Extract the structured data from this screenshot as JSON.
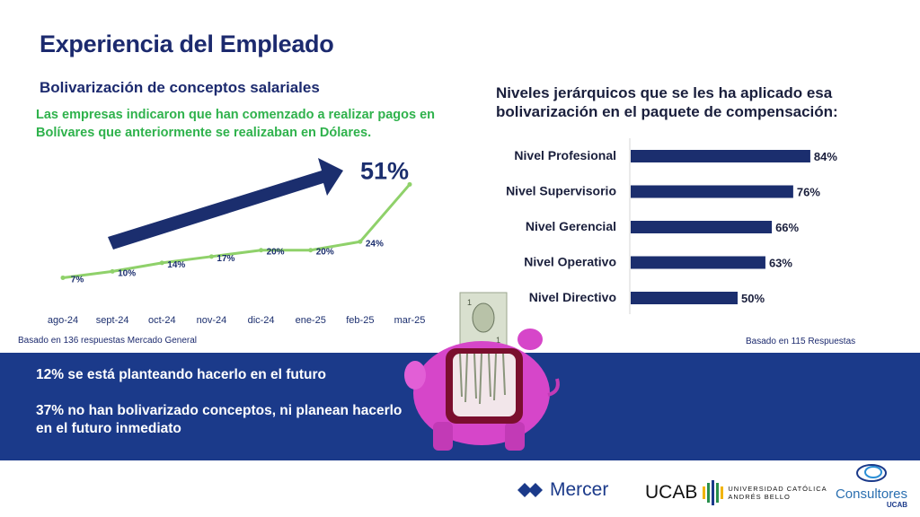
{
  "header": {
    "title": "Experiencia del Empleado",
    "subtitle": "Bolivarización de conceptos salariales",
    "description": "Las empresas indicaron que han comenzado a realizar pagos en Bolívares que anteriormente se realizaban en Dólares."
  },
  "right_panel": {
    "title": "Niveles jerárquicos que se les ha aplicado esa bolivarización en el paquete de compensación:"
  },
  "notes": {
    "left": "Basado en 136  respuestas Mercado General",
    "right": "Basado en 115 Respuestas"
  },
  "band": {
    "line1": "12% se está planteando hacerlo en el futuro",
    "line2": "37% no han bolivarizado conceptos, ni planean hacerlo en el futuro inmediato"
  },
  "logos": {
    "mercer": "Mercer",
    "ucab": "UCAB",
    "ucab_line1": "UNIVERSIDAD CATÓLICA",
    "ucab_line2": "ANDRÉS BELLO",
    "consultores": "Consultores",
    "consultores_sub": "UCAB"
  },
  "colors": {
    "navy": "#1b2e6e",
    "green": "#8fd16a",
    "band": "#1b3a8a",
    "accent_green": "#2fb24c"
  },
  "chart_data": [
    {
      "type": "line",
      "categories": [
        "ago-24",
        "sept-24",
        "oct-24",
        "nov-24",
        "dic-24",
        "ene-25",
        "feb-25",
        "mar-25"
      ],
      "values": [
        7,
        10,
        14,
        17,
        20,
        20,
        24,
        51
      ],
      "labels": [
        "7%",
        "10%",
        "14%",
        "17%",
        "20%",
        "20%",
        "24%",
        "51%"
      ],
      "ylim": [
        0,
        55
      ]
    },
    {
      "type": "bar",
      "orientation": "horizontal",
      "categories": [
        "Nivel Profesional",
        "Nivel Supervisorio",
        "Nivel Gerencial",
        "Nivel Operativo",
        "Nivel Directivo"
      ],
      "values": [
        84,
        76,
        66,
        63,
        50
      ],
      "labels": [
        "84%",
        "76%",
        "66%",
        "63%",
        "50%"
      ],
      "xlim": [
        0,
        100
      ]
    }
  ]
}
